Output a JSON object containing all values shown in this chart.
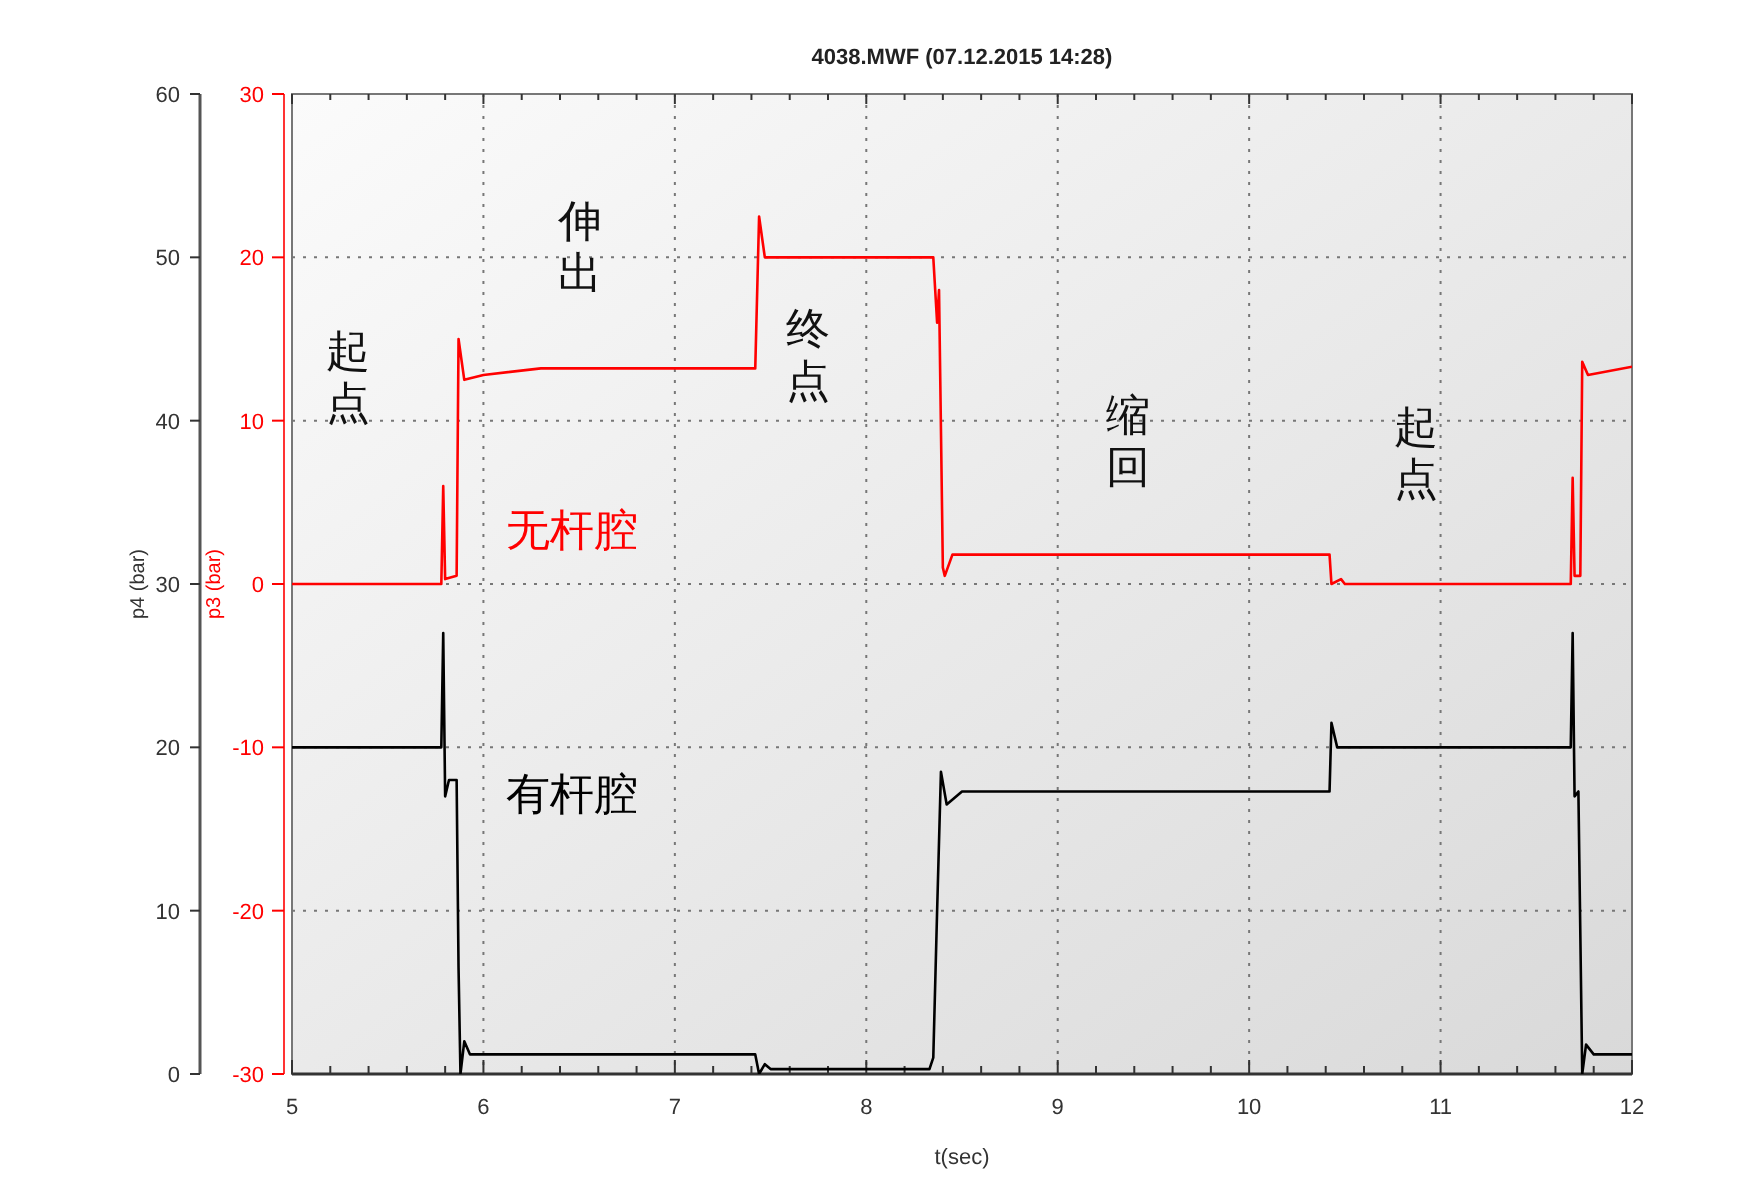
{
  "chart_data": {
    "type": "line",
    "title": "4038.MWF (07.12.2015 14:28)",
    "xlabel": "t(sec)",
    "ylabel": "p4 (bar)",
    "y2label": "p3 (bar)",
    "xlim": [
      5,
      12
    ],
    "xticks": [
      5,
      6,
      7,
      8,
      9,
      10,
      11,
      12
    ],
    "ylim": [
      0,
      60
    ],
    "yticks": [
      0,
      10,
      20,
      30,
      40,
      50,
      60
    ],
    "y2lim": [
      -30,
      30
    ],
    "y2ticks": [
      -30,
      -20,
      -10,
      0,
      10,
      20,
      30
    ],
    "grid": true,
    "legend": false,
    "marker": "none",
    "line_style": "solid",
    "annotations": [
      "起点",
      "伸出",
      "终点",
      "缩回",
      "起点"
    ],
    "series": [
      {
        "name": "无杆腔",
        "color": "#ff0000",
        "axis": "y2",
        "x": [
          5,
          5.78,
          5.79,
          5.8,
          5.86,
          5.87,
          5.9,
          6.0,
          6.3,
          7.42,
          7.44,
          7.47,
          8.35,
          8.36,
          8.37,
          8.38,
          8.4,
          8.41,
          8.45,
          10.42,
          10.43,
          10.48,
          10.5,
          11.68,
          11.69,
          11.7,
          11.73,
          11.74,
          11.77,
          12
        ],
        "values": [
          0,
          0,
          6,
          0.3,
          0.5,
          15,
          12.5,
          12.8,
          13.2,
          13.2,
          22.5,
          20,
          20,
          18,
          16,
          18,
          1,
          0.5,
          1.8,
          1.8,
          0,
          0.3,
          0,
          0,
          6.5,
          0.5,
          0.5,
          13.6,
          12.8,
          13.3
        ]
      },
      {
        "name": "有杆腔",
        "color": "#000000",
        "x": [
          5,
          5.78,
          5.79,
          5.8,
          5.82,
          5.86,
          5.87,
          5.88,
          5.9,
          5.93,
          7.42,
          7.44,
          7.47,
          7.5,
          8.33,
          8.35,
          8.37,
          8.39,
          8.42,
          8.5,
          10.42,
          10.43,
          10.46,
          11.68,
          11.69,
          11.7,
          11.72,
          11.74,
          11.76,
          11.8,
          12
        ],
        "values": [
          20,
          20,
          27,
          17,
          18,
          18,
          6.5,
          0,
          2,
          1.2,
          1.2,
          0,
          0.6,
          0.3,
          0.3,
          1,
          10,
          18.5,
          16.5,
          17.3,
          17.3,
          21.5,
          20,
          20,
          27,
          17,
          17.3,
          0,
          1.8,
          1.2,
          1.2
        ]
      }
    ]
  }
}
